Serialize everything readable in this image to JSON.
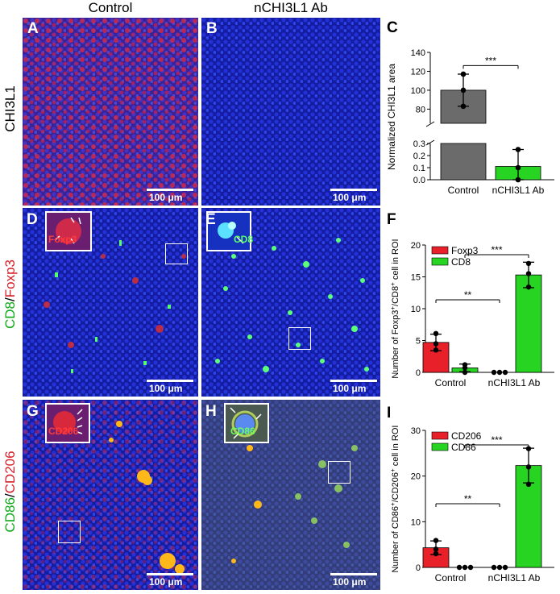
{
  "columns": {
    "control": "Control",
    "treated": "nCHI3L1 Ab"
  },
  "rows": {
    "r1": {
      "label": "CHI3L1"
    },
    "r2": {
      "label_a": "CD8",
      "label_sep": "/",
      "label_b": "Foxp3"
    },
    "r3": {
      "label_a": "CD86",
      "label_sep": "/",
      "label_b": "CD206"
    }
  },
  "panels": {
    "A": {
      "letter": "A",
      "scale": "100 μm"
    },
    "B": {
      "letter": "B",
      "scale": "100 μm"
    },
    "C": {
      "letter": "C"
    },
    "D": {
      "letter": "D",
      "scale": "100 μm",
      "inset_label": "Foxp3"
    },
    "E": {
      "letter": "E",
      "scale": "100 μm",
      "inset_label": "CD8"
    },
    "F": {
      "letter": "F"
    },
    "G": {
      "letter": "G",
      "scale": "100 μm",
      "inset_label": "CD206"
    },
    "H": {
      "letter": "H",
      "scale": "100 μm",
      "inset_label": "CD86"
    },
    "I": {
      "letter": "I"
    }
  },
  "colors": {
    "gray_bar": "#6b6b6b",
    "red_bar": "#e8202a",
    "green_bar": "#27d421",
    "nuclei": "#1a2bd8",
    "chi3l1": "#e0303a",
    "cd8": "#4cff6a",
    "cd206": "#e02030",
    "cd86": "#9ad84a"
  },
  "chart_data": [
    {
      "panel": "C",
      "type": "bar",
      "ylabel": "Normalized CHI3L1 area",
      "categories": [
        "Control",
        "nCHI3L1 Ab"
      ],
      "values": [
        100,
        0.11
      ],
      "errors": [
        17,
        0.14
      ],
      "points": [
        [
          83,
          100,
          117
        ],
        [
          0,
          0.1,
          0.25
        ]
      ],
      "bar_colors": [
        "#6b6b6b",
        "#27d421"
      ],
      "y_break": {
        "lower": [
          0,
          0.3
        ],
        "upper": [
          65,
          140
        ]
      },
      "yticks_lower": [
        "0.0",
        "0.1",
        "0.2",
        "0.3"
      ],
      "yticks_upper": [
        "80",
        "100",
        "120",
        "140"
      ],
      "significance": [
        {
          "from": "Control",
          "to": "nCHI3L1 Ab",
          "label": "***"
        }
      ]
    },
    {
      "panel": "F",
      "type": "bar",
      "ylabel_parts": [
        "Number of Foxp3",
        "+",
        "/CD8",
        "+",
        " cell in ROI"
      ],
      "categories": [
        "Control",
        "nCHI3L1 Ab"
      ],
      "series": [
        {
          "name": "Foxp3",
          "values": [
            4.7,
            0
          ],
          "errors": [
            1.3,
            0
          ],
          "points": [
            [
              3.5,
              4.5,
              6.1
            ],
            [
              0,
              0,
              0
            ]
          ]
        },
        {
          "name": "CD8",
          "values": [
            0.7,
            15.3
          ],
          "errors": [
            0.6,
            2.0
          ],
          "points": [
            [
              0,
              0.7,
              1.2
            ],
            [
              13.4,
              15.5,
              17.1
            ]
          ]
        }
      ],
      "ylim": [
        0,
        20
      ],
      "yticks": [
        "0",
        "5",
        "10",
        "15",
        "20"
      ],
      "significance": [
        {
          "label": "**",
          "from": "Control Foxp3",
          "to": "nCHI3L1 Ab Foxp3"
        },
        {
          "label": "***",
          "from": "Control CD8",
          "to": "nCHI3L1 Ab CD8"
        }
      ]
    },
    {
      "panel": "I",
      "type": "bar",
      "ylabel_parts": [
        "Number of CD86",
        "+",
        "/CD206",
        "+",
        " cell in ROI"
      ],
      "categories": [
        "Control",
        "nCHI3L1 Ab"
      ],
      "series": [
        {
          "name": "CD206",
          "values": [
            4.3,
            0
          ],
          "errors": [
            1.5,
            0
          ],
          "points": [
            [
              3.0,
              4.0,
              5.9
            ],
            [
              0,
              0,
              0
            ]
          ]
        },
        {
          "name": "CD86",
          "values": [
            0,
            22.3
          ],
          "errors": [
            0,
            3.8
          ],
          "points": [
            [
              0,
              0,
              0
            ],
            [
              18.2,
              22.0,
              26.0
            ]
          ]
        }
      ],
      "ylim": [
        0,
        30
      ],
      "yticks": [
        "0",
        "10",
        "20",
        "30"
      ],
      "significance": [
        {
          "label": "**",
          "from": "Control CD206",
          "to": "nCHI3L1 Ab CD206"
        },
        {
          "label": "***",
          "from": "Control CD86",
          "to": "nCHI3L1 Ab CD86"
        }
      ]
    }
  ]
}
